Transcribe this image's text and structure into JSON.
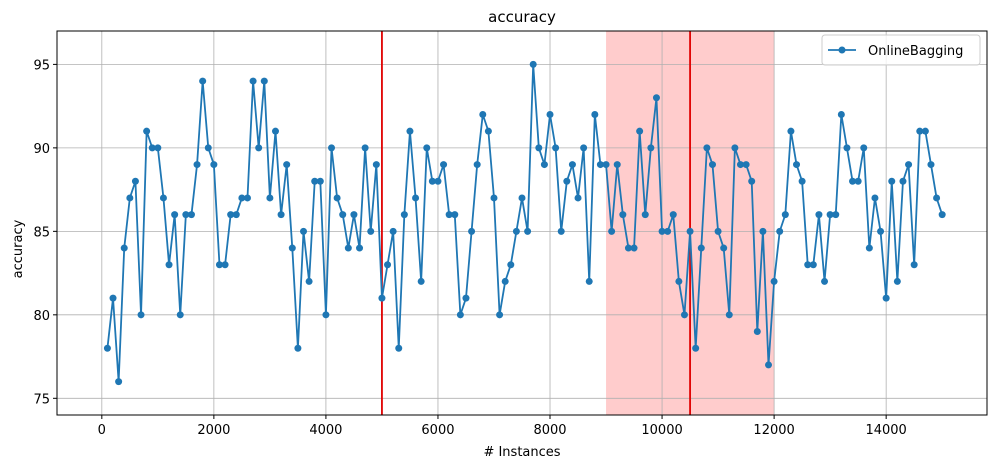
{
  "chart_data": {
    "type": "line",
    "title": "accuracy",
    "xlabel": "# Instances",
    "ylabel": "accuracy",
    "xlim": [
      -800,
      15800
    ],
    "ylim": [
      74,
      97
    ],
    "xticks": [
      0,
      2000,
      4000,
      6000,
      8000,
      10000,
      12000,
      14000
    ],
    "yticks": [
      75,
      80,
      85,
      90,
      95
    ],
    "grid": true,
    "legend_position": "top-right",
    "colors": {
      "series": "#1f77b4",
      "drift_line": "#e00000",
      "shaded_region": "#ffcccc",
      "grid": "#b0b0b0"
    },
    "vertical_lines": [
      5000,
      10500
    ],
    "shaded_regions": [
      [
        9000,
        12000
      ]
    ],
    "series": [
      {
        "name": "OnlineBagging",
        "x": [
          100,
          200,
          300,
          400,
          500,
          600,
          700,
          800,
          900,
          1000,
          1100,
          1200,
          1300,
          1400,
          1500,
          1600,
          1700,
          1800,
          1900,
          2000,
          2100,
          2200,
          2300,
          2400,
          2500,
          2600,
          2700,
          2800,
          2900,
          3000,
          3100,
          3200,
          3300,
          3400,
          3500,
          3600,
          3700,
          3800,
          3900,
          4000,
          4100,
          4200,
          4300,
          4400,
          4500,
          4600,
          4700,
          4800,
          4900,
          5000,
          5100,
          5200,
          5300,
          5400,
          5500,
          5600,
          5700,
          5800,
          5900,
          6000,
          6100,
          6200,
          6300,
          6400,
          6500,
          6600,
          6700,
          6800,
          6900,
          7000,
          7100,
          7200,
          7300,
          7400,
          7500,
          7600,
          7700,
          7800,
          7900,
          8000,
          8100,
          8200,
          8300,
          8400,
          8500,
          8600,
          8700,
          8800,
          8900,
          9000,
          9100,
          9200,
          9300,
          9400,
          9500,
          9600,
          9700,
          9800,
          9900,
          10000,
          10100,
          10200,
          10300,
          10400,
          10500,
          10600,
          10700,
          10800,
          10900,
          11000,
          11100,
          11200,
          11300,
          11400,
          11500,
          11600,
          11700,
          11800,
          11900,
          12000,
          12100,
          12200,
          12300,
          12400,
          12500,
          12600,
          12700,
          12800,
          12900,
          13000,
          13100,
          13200,
          13300,
          13400,
          13500,
          13600,
          13700,
          13800,
          13900,
          14000,
          14100,
          14200,
          14300,
          14400,
          14500,
          14600,
          14700,
          14800,
          14900,
          15000
        ],
        "values": [
          78,
          81,
          76,
          84,
          87,
          88,
          80,
          91,
          90,
          90,
          87,
          83,
          86,
          80,
          86,
          86,
          89,
          94,
          90,
          89,
          83,
          83,
          86,
          86,
          87,
          87,
          94,
          90,
          94,
          87,
          91,
          86,
          89,
          84,
          78,
          85,
          82,
          88,
          88,
          80,
          90,
          87,
          86,
          84,
          86,
          84,
          90,
          85,
          89,
          81,
          83,
          85,
          78,
          86,
          91,
          87,
          82,
          90,
          88,
          88,
          89,
          86,
          86,
          80,
          81,
          85,
          89,
          92,
          91,
          87,
          80,
          82,
          83,
          85,
          87,
          85,
          95,
          90,
          89,
          92,
          90,
          85,
          88,
          89,
          87,
          90,
          82,
          92,
          89,
          89,
          85,
          89,
          86,
          84,
          84,
          91,
          86,
          90,
          93,
          85,
          85,
          86,
          82,
          80,
          85,
          78,
          84,
          90,
          89,
          85,
          84,
          80,
          90,
          89,
          89,
          88,
          79,
          85,
          77,
          82,
          85,
          86,
          91,
          89,
          88,
          83,
          83,
          86,
          82,
          86,
          86,
          92,
          90,
          88,
          88,
          90,
          84,
          87,
          85,
          81,
          88,
          82,
          88,
          89,
          83,
          91,
          91,
          89,
          87,
          86
        ]
      }
    ]
  }
}
